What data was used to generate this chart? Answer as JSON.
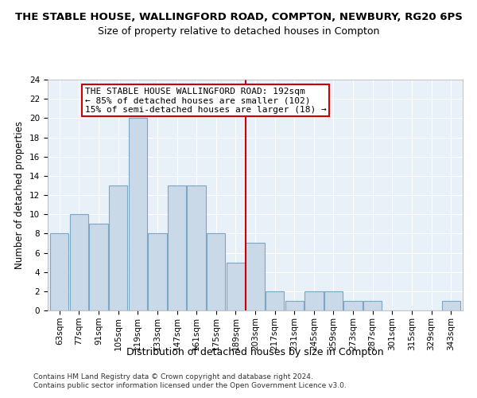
{
  "title": "THE STABLE HOUSE, WALLINGFORD ROAD, COMPTON, NEWBURY, RG20 6PS",
  "subtitle": "Size of property relative to detached houses in Compton",
  "xlabel": "Distribution of detached houses by size in Compton",
  "ylabel": "Number of detached properties",
  "bin_labels": [
    "63sqm",
    "77sqm",
    "91sqm",
    "105sqm",
    "119sqm",
    "133sqm",
    "147sqm",
    "161sqm",
    "175sqm",
    "189sqm",
    "203sqm",
    "217sqm",
    "231sqm",
    "245sqm",
    "259sqm",
    "273sqm",
    "287sqm",
    "301sqm",
    "315sqm",
    "329sqm",
    "343sqm"
  ],
  "bar_values": [
    8,
    10,
    9,
    13,
    20,
    8,
    13,
    13,
    8,
    5,
    7,
    2,
    1,
    2,
    2,
    1,
    1,
    0,
    0,
    0,
    1
  ],
  "bar_color": "#c9d9e8",
  "bar_edge_color": "#7ba7c7",
  "vline_x": 9.5,
  "vline_color": "#cc0000",
  "annotation_text": "THE STABLE HOUSE WALLINGFORD ROAD: 192sqm\n← 85% of detached houses are smaller (102)\n15% of semi-detached houses are larger (18) →",
  "annotation_box_color": "#ffffff",
  "annotation_box_edge": "#cc0000",
  "ylim": [
    0,
    24
  ],
  "yticks": [
    0,
    2,
    4,
    6,
    8,
    10,
    12,
    14,
    16,
    18,
    20,
    22,
    24
  ],
  "plot_bg_color": "#e8f0f8",
  "footer_line1": "Contains HM Land Registry data © Crown copyright and database right 2024.",
  "footer_line2": "Contains public sector information licensed under the Open Government Licence v3.0.",
  "title_fontsize": 9.5,
  "subtitle_fontsize": 9,
  "axis_label_fontsize": 8.5,
  "tick_fontsize": 7.5,
  "annotation_fontsize": 8,
  "footer_fontsize": 6.5
}
